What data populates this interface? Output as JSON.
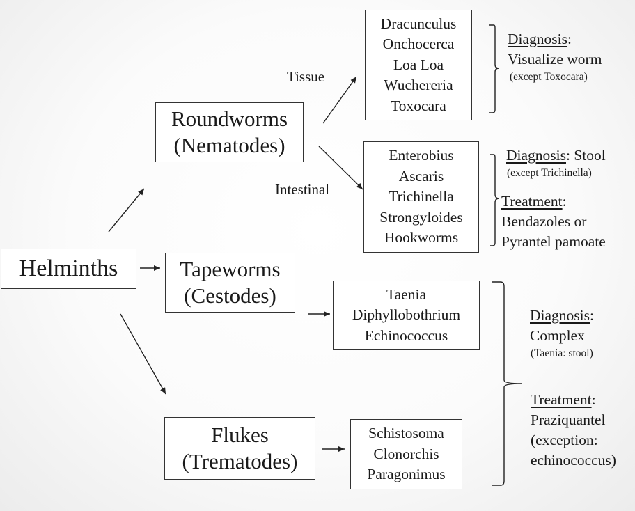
{
  "root": {
    "label": "Helminths"
  },
  "groups": {
    "roundworms": {
      "line1": "Roundworms",
      "line2": "(Nematodes)"
    },
    "tapeworms": {
      "line1": "Tapeworms",
      "line2": "(Cestodes)"
    },
    "flukes": {
      "line1": "Flukes",
      "line2": "(Trematodes)"
    }
  },
  "branch_labels": {
    "tissue": "Tissue",
    "intestinal": "Intestinal"
  },
  "species": {
    "tissue": [
      "Dracunculus",
      "Onchocerca",
      "Loa Loa",
      "Wuchereria",
      "Toxocara"
    ],
    "intestinal": [
      "Enterobius",
      "Ascaris",
      "Trichinella",
      "Strongyloides",
      "Hookworms"
    ],
    "cestodes": [
      "Taenia",
      "Diphyllobothrium",
      "Echinococcus"
    ],
    "trematodes": [
      "Schistosoma",
      "Clonorchis",
      "Paragonimus"
    ]
  },
  "notes": {
    "tissue": {
      "diagnosis_label": "Diagnosis",
      "diagnosis_colon": ":",
      "diagnosis_text": "Visualize worm",
      "diagnosis_exception": "(except Toxocara)"
    },
    "intestinal": {
      "diagnosis_label": "Diagnosis",
      "diagnosis_text": ": Stool",
      "diagnosis_exception": "(except Trichinella)",
      "treatment_label": "Treatment",
      "treatment_colon": ":",
      "treatment_line1": "Bendazoles or",
      "treatment_line2": "Pyrantel pamoate"
    },
    "flatworms": {
      "diagnosis_label": "Diagnosis",
      "diagnosis_colon": ":",
      "diagnosis_text": "Complex",
      "diagnosis_exception": "(Taenia: stool)",
      "treatment_label": "Treatment",
      "treatment_colon": ":",
      "treatment_line1": "Praziquantel",
      "treatment_line2": "(exception:",
      "treatment_line3": "echinococcus)"
    }
  }
}
